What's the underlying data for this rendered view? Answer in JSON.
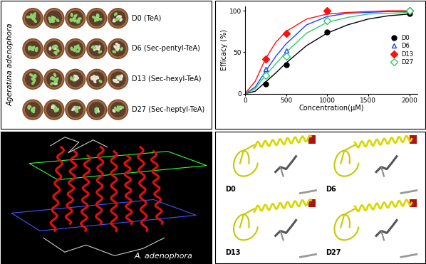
{
  "plants": {
    "species": "Ageratina adenophora",
    "rows": [
      "D0 (TeA)",
      "D6 (Sec-pentyl-TeA)",
      "D13 (Sec-hexyl-TeA)",
      "D27 (Sec-heptyl-TeA)"
    ]
  },
  "chart_data": {
    "type": "line",
    "x_label": "Concentration(μM)",
    "y_label": "Efficacy (%)",
    "x": [
      250,
      500,
      1000,
      2000
    ],
    "fit_x": [
      0,
      125,
      250,
      375,
      500,
      750,
      1000,
      1250,
      1500,
      1750,
      2000
    ],
    "series": [
      {
        "name": "D0",
        "color": "#000000",
        "marker": "circle",
        "values": [
          12,
          35,
          74,
          97
        ],
        "fit_values": [
          0,
          3,
          14,
          25,
          37,
          58,
          73,
          83,
          90,
          94,
          96
        ]
      },
      {
        "name": "D6",
        "color": "#1f3fff",
        "marker": "open_triangle",
        "values": [
          30,
          52,
          100,
          100
        ],
        "fit_values": [
          0,
          8,
          27,
          45,
          60,
          83,
          93,
          97,
          98,
          99,
          99
        ]
      },
      {
        "name": "D13",
        "color": "#ff1010",
        "marker": "diamond",
        "values": [
          42,
          73,
          100,
          100
        ],
        "fit_values": [
          0,
          15,
          42,
          62,
          75,
          90,
          96,
          98,
          99,
          100,
          100
        ]
      },
      {
        "name": "D27",
        "color": "#2ecc71",
        "marker": "open_diamond",
        "values": [
          22,
          45,
          88,
          100
        ],
        "fit_values": [
          0,
          6,
          22,
          36,
          50,
          73,
          86,
          92,
          96,
          97,
          98
        ]
      }
    ],
    "xlim": [
      0,
      2100
    ],
    "ylim": [
      0,
      105
    ],
    "xticks": [
      0,
      500,
      1000,
      1500,
      2000
    ],
    "yticks": [
      0,
      50,
      100
    ],
    "legend": "center right"
  },
  "membrane": {
    "label": "A. adenophora"
  },
  "docking": {
    "labels": [
      "D0",
      "D6",
      "D13",
      "D27"
    ]
  }
}
